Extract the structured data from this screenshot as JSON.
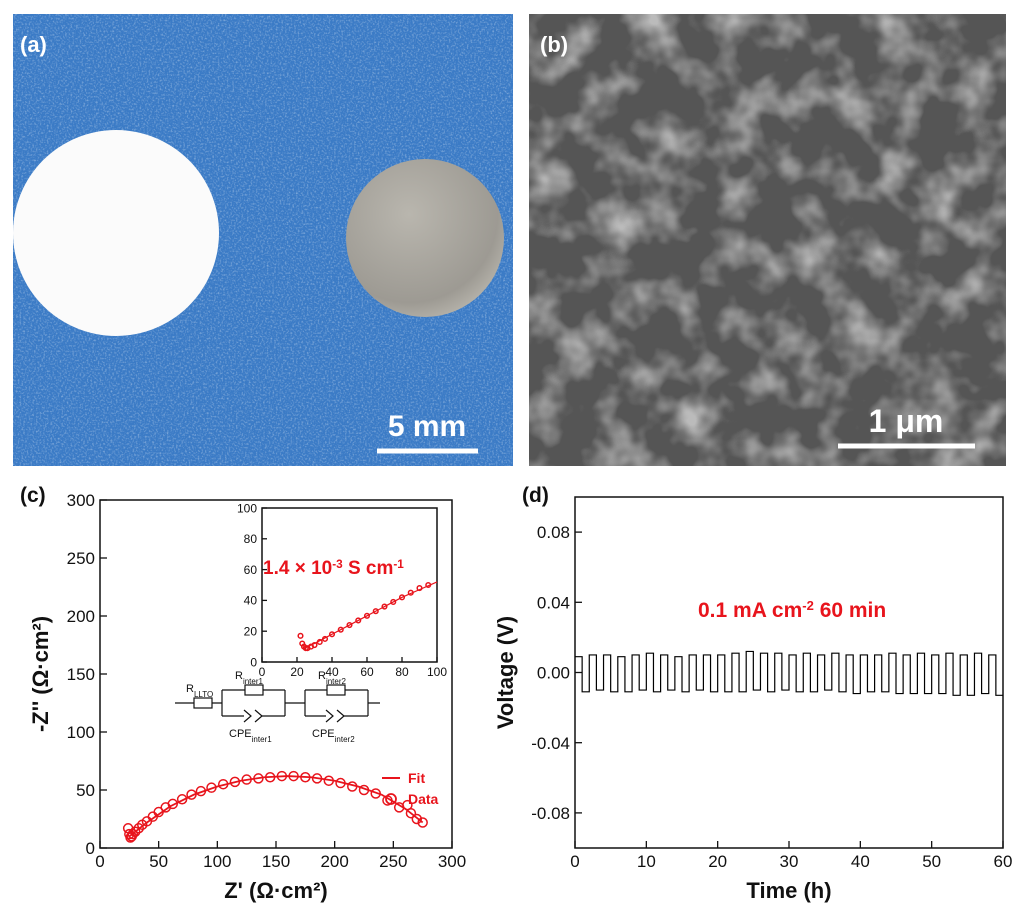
{
  "panels": {
    "a": {
      "label": "(a)",
      "scale_bar": "5 mm"
    },
    "b": {
      "label": "(b)",
      "scale_bar": "1 μm"
    },
    "c": {
      "label": "(c)",
      "circuit": [
        {
          "main": "R",
          "sub": "LLTO"
        },
        {
          "main": "R",
          "sub": "inter1"
        },
        {
          "main": "CPE",
          "sub": "inter1"
        },
        {
          "main": "R",
          "sub": "inter2"
        },
        {
          "main": "CPE",
          "sub": "inter2"
        }
      ]
    },
    "d": {
      "label": "(d)"
    }
  },
  "chart_data": [
    {
      "type": "scatter",
      "xlabel": "Z' (Ω·cm²)",
      "ylabel": "-Z'' (Ω·cm²)",
      "xlim": [
        0,
        300
      ],
      "ylim": [
        0,
        300
      ],
      "xticks": [
        0,
        50,
        100,
        150,
        200,
        250,
        300
      ],
      "yticks": [
        0,
        50,
        100,
        150,
        200,
        250,
        300
      ],
      "legend": "lower right",
      "series": [
        {
          "name": "Fit",
          "color": "#e8141c",
          "style": "line",
          "x": [
            25,
            40,
            60,
            80,
            100,
            120,
            140,
            160,
            180,
            200,
            220,
            240,
            260,
            275
          ],
          "values": [
            10,
            22,
            36,
            46,
            53,
            58,
            61,
            62,
            61,
            58,
            53,
            46,
            34,
            22
          ]
        },
        {
          "name": "Data",
          "color": "#e8141c",
          "style": "markers",
          "x": [
            24,
            25,
            26,
            27,
            28,
            30,
            33,
            36,
            40,
            45,
            50,
            56,
            62,
            70,
            78,
            86,
            95,
            105,
            115,
            125,
            135,
            145,
            155,
            165,
            175,
            185,
            195,
            205,
            215,
            225,
            235,
            245,
            255,
            262,
            265,
            270,
            275
          ],
          "values": [
            17,
            12,
            9,
            10,
            12,
            14,
            17,
            20,
            23,
            27,
            31,
            35,
            38,
            42,
            46,
            49,
            52,
            55,
            57,
            59,
            60,
            61,
            62,
            62,
            61,
            60,
            58,
            56,
            53,
            50,
            47,
            41,
            35,
            37,
            30,
            25,
            22
          ]
        }
      ],
      "inset": {
        "xlim": [
          0,
          100
        ],
        "ylim": [
          0,
          100
        ],
        "xticks": [
          0,
          20,
          40,
          60,
          80,
          100
        ],
        "yticks": [
          0,
          20,
          40,
          60,
          80,
          100
        ],
        "annotation": [
          {
            "text": "1.4 × 10"
          },
          {
            "text": "-3",
            "sup": true
          },
          {
            "text": " S cm"
          },
          {
            "text": "-1",
            "sup": true
          }
        ],
        "series": [
          {
            "color": "#e8141c",
            "style": "line",
            "x": [
              24,
              30,
              40,
              50,
              60,
              70,
              80,
              90,
              100
            ],
            "values": [
              9,
              12,
              18,
              24,
              30,
              36,
              42,
              47,
              52
            ]
          },
          {
            "color": "#e8141c",
            "style": "markers",
            "x": [
              22,
              23,
              24,
              25,
              26,
              28,
              30,
              33,
              36,
              40,
              45,
              50,
              55,
              60,
              65,
              70,
              75,
              80,
              85,
              90,
              95
            ],
            "values": [
              17,
              12,
              10,
              9,
              9,
              10,
              11,
              13,
              15,
              18,
              21,
              24,
              27,
              30,
              33,
              36,
              39,
              42,
              45,
              48,
              50
            ]
          }
        ]
      }
    },
    {
      "type": "line",
      "xlabel": "Time (h)",
      "ylabel": "Voltage (V)",
      "xlim": [
        0,
        60
      ],
      "ylim": [
        -0.1,
        0.1
      ],
      "xticks": [
        0,
        10,
        20,
        30,
        40,
        50,
        60
      ],
      "yticks": [
        -0.08,
        -0.04,
        {
          "value": 0,
          "label": "0.00"
        },
        0.04,
        0.08
      ],
      "annotation": [
        {
          "text": "0.1 mA cm"
        },
        {
          "text": "-2",
          "sup": true
        },
        {
          "text": "  60 min"
        }
      ],
      "series": [
        {
          "color": "#000000",
          "style": "line",
          "x": [
            0,
            1,
            1,
            2,
            2,
            3,
            3,
            4,
            4,
            5,
            5,
            6,
            6,
            7,
            7,
            8,
            8,
            9,
            9,
            10,
            10,
            11,
            11,
            12,
            12,
            13,
            13,
            14,
            14,
            15,
            15,
            16,
            16,
            17,
            17,
            18,
            18,
            19,
            19,
            20,
            20,
            21,
            21,
            22,
            22,
            23,
            23,
            24,
            24,
            25,
            25,
            26,
            26,
            27,
            27,
            28,
            28,
            29,
            29,
            30,
            30,
            31,
            31,
            32,
            32,
            33,
            33,
            34,
            34,
            35,
            35,
            36,
            36,
            37,
            37,
            38,
            38,
            39,
            39,
            40,
            40,
            41,
            41,
            42,
            42,
            43,
            43,
            44,
            44,
            45,
            45,
            46,
            46,
            47,
            47,
            48,
            48,
            49,
            49,
            50,
            50,
            51,
            51,
            52,
            52,
            53,
            53,
            54,
            54,
            55,
            55,
            56,
            56,
            57,
            57,
            58,
            58,
            59,
            59,
            60
          ],
          "values": [
            0.009,
            0.009,
            -0.011,
            -0.011,
            0.01,
            0.01,
            -0.01,
            -0.01,
            0.01,
            0.01,
            -0.011,
            -0.011,
            0.009,
            0.009,
            -0.011,
            -0.011,
            0.01,
            0.01,
            -0.01,
            -0.01,
            0.011,
            0.011,
            -0.011,
            -0.011,
            0.01,
            0.01,
            -0.01,
            -0.01,
            0.009,
            0.009,
            -0.011,
            -0.011,
            0.01,
            0.01,
            -0.01,
            -0.01,
            0.01,
            0.01,
            -0.011,
            -0.011,
            0.01,
            0.01,
            -0.011,
            -0.011,
            0.011,
            0.011,
            -0.011,
            -0.011,
            0.012,
            0.012,
            -0.01,
            -0.01,
            0.011,
            0.011,
            -0.011,
            -0.011,
            0.011,
            0.011,
            -0.01,
            -0.01,
            0.01,
            0.01,
            -0.011,
            -0.011,
            0.011,
            0.011,
            -0.011,
            -0.011,
            0.01,
            0.01,
            -0.01,
            -0.01,
            0.011,
            0.011,
            -0.011,
            -0.011,
            0.01,
            0.01,
            -0.012,
            -0.012,
            0.01,
            0.01,
            -0.011,
            -0.011,
            0.01,
            0.01,
            -0.011,
            -0.011,
            0.011,
            0.011,
            -0.012,
            -0.012,
            0.01,
            0.01,
            -0.012,
            -0.012,
            0.011,
            0.011,
            -0.012,
            -0.012,
            0.01,
            0.01,
            -0.012,
            -0.012,
            0.011,
            0.011,
            -0.013,
            -0.013,
            0.01,
            0.01,
            -0.013,
            -0.013,
            0.011,
            0.011,
            -0.012,
            -0.012,
            0.01,
            0.01,
            -0.013,
            -0.013
          ]
        }
      ]
    }
  ]
}
